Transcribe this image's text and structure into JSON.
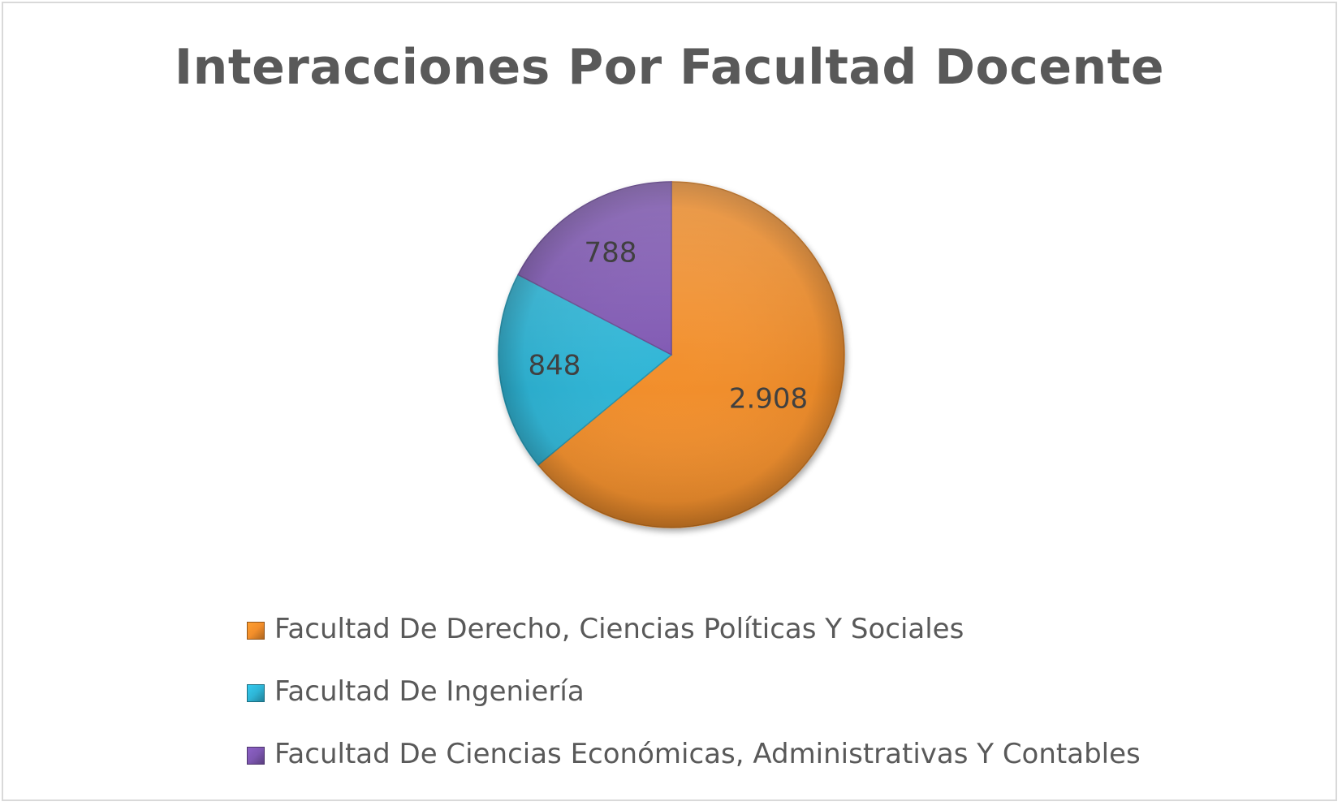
{
  "chart_data": {
    "type": "pie",
    "title": "Interacciones Por Facultad Docente",
    "slices": [
      {
        "label": "Facultad De Derecho, Ciencias Políticas Y Sociales",
        "value": 2908,
        "display": "2.908",
        "color": "#F28E2B"
      },
      {
        "label": "Facultad De Ingeniería",
        "value": 848,
        "display": "848",
        "color": "#2EB5D6"
      },
      {
        "label": "Facultad De Ciencias Económicas, Administrativas Y Contables",
        "value": 788,
        "display": "788",
        "color": "#7E57B2"
      }
    ],
    "start_angle_deg": 0,
    "direction": "clockwise",
    "legend_position": "bottom",
    "data_labels": true
  }
}
